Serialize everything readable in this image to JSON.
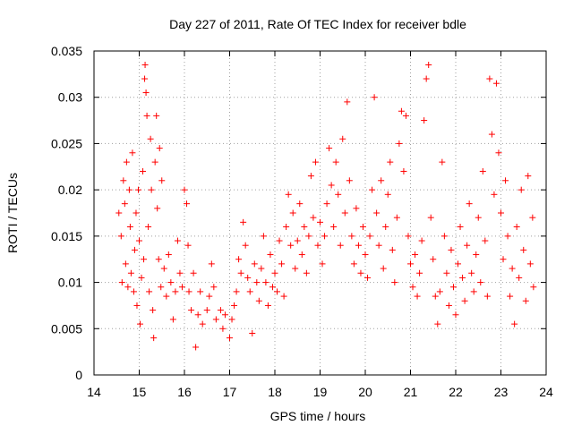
{
  "chart_data": {
    "type": "scatter",
    "title": "Day 227 of 2011, Rate Of TEC Index for receiver bdle",
    "xlabel": "GPS time / hours",
    "ylabel": "ROTI / TECUs",
    "xlim": [
      14,
      24
    ],
    "ylim": [
      0,
      0.035
    ],
    "x_ticks": [
      "14",
      "15",
      "16",
      "17",
      "18",
      "19",
      "20",
      "21",
      "22",
      "23",
      "24"
    ],
    "y_ticks": [
      "0",
      "0.005",
      "0.01",
      "0.015",
      "0.02",
      "0.025",
      "0.03",
      "0.035"
    ],
    "grid": true,
    "marker": "+",
    "color": "#ff0000",
    "series": [
      {
        "name": "ROTI",
        "points": [
          [
            14.55,
            0.0175
          ],
          [
            14.6,
            0.015
          ],
          [
            14.62,
            0.01
          ],
          [
            14.65,
            0.021
          ],
          [
            14.68,
            0.0185
          ],
          [
            14.7,
            0.012
          ],
          [
            14.72,
            0.023
          ],
          [
            14.75,
            0.0095
          ],
          [
            14.78,
            0.02
          ],
          [
            14.8,
            0.016
          ],
          [
            14.82,
            0.011
          ],
          [
            14.85,
            0.024
          ],
          [
            14.88,
            0.009
          ],
          [
            14.9,
            0.0135
          ],
          [
            14.93,
            0.0175
          ],
          [
            14.95,
            0.0075
          ],
          [
            14.98,
            0.02
          ],
          [
            15.0,
            0.0145
          ],
          [
            15.02,
            0.0055
          ],
          [
            15.05,
            0.0105
          ],
          [
            15.08,
            0.022
          ],
          [
            15.1,
            0.0125
          ],
          [
            15.12,
            0.032
          ],
          [
            15.13,
            0.0335
          ],
          [
            15.15,
            0.0305
          ],
          [
            15.17,
            0.028
          ],
          [
            15.2,
            0.016
          ],
          [
            15.22,
            0.009
          ],
          [
            15.25,
            0.0255
          ],
          [
            15.27,
            0.02
          ],
          [
            15.3,
            0.007
          ],
          [
            15.32,
            0.004
          ],
          [
            15.35,
            0.023
          ],
          [
            15.38,
            0.028
          ],
          [
            15.4,
            0.018
          ],
          [
            15.43,
            0.0125
          ],
          [
            15.45,
            0.0245
          ],
          [
            15.48,
            0.0095
          ],
          [
            15.5,
            0.021
          ],
          [
            15.55,
            0.0115
          ],
          [
            15.6,
            0.0085
          ],
          [
            15.65,
            0.013
          ],
          [
            15.7,
            0.01
          ],
          [
            15.75,
            0.006
          ],
          [
            15.8,
            0.009
          ],
          [
            15.85,
            0.0145
          ],
          [
            15.9,
            0.011
          ],
          [
            15.95,
            0.0095
          ],
          [
            16.0,
            0.02
          ],
          [
            16.05,
            0.0185
          ],
          [
            16.08,
            0.014
          ],
          [
            16.1,
            0.009
          ],
          [
            16.15,
            0.007
          ],
          [
            16.2,
            0.011
          ],
          [
            16.25,
            0.003
          ],
          [
            16.3,
            0.0065
          ],
          [
            16.35,
            0.009
          ],
          [
            16.4,
            0.0055
          ],
          [
            16.5,
            0.007
          ],
          [
            16.55,
            0.0085
          ],
          [
            16.6,
            0.012
          ],
          [
            16.65,
            0.0095
          ],
          [
            16.7,
            0.006
          ],
          [
            16.8,
            0.007
          ],
          [
            16.85,
            0.005
          ],
          [
            16.9,
            0.0065
          ],
          [
            17.0,
            0.004
          ],
          [
            17.05,
            0.006
          ],
          [
            17.1,
            0.0075
          ],
          [
            17.15,
            0.009
          ],
          [
            17.2,
            0.0125
          ],
          [
            17.25,
            0.011
          ],
          [
            17.3,
            0.0165
          ],
          [
            17.35,
            0.014
          ],
          [
            17.4,
            0.0105
          ],
          [
            17.45,
            0.009
          ],
          [
            17.5,
            0.0045
          ],
          [
            17.55,
            0.012
          ],
          [
            17.6,
            0.01
          ],
          [
            17.65,
            0.008
          ],
          [
            17.7,
            0.0115
          ],
          [
            17.75,
            0.015
          ],
          [
            17.8,
            0.01
          ],
          [
            17.85,
            0.0075
          ],
          [
            17.9,
            0.013
          ],
          [
            17.95,
            0.0095
          ],
          [
            18.0,
            0.011
          ],
          [
            18.05,
            0.009
          ],
          [
            18.1,
            0.0145
          ],
          [
            18.15,
            0.012
          ],
          [
            18.2,
            0.0085
          ],
          [
            18.25,
            0.016
          ],
          [
            18.3,
            0.0195
          ],
          [
            18.35,
            0.014
          ],
          [
            18.4,
            0.0175
          ],
          [
            18.45,
            0.0115
          ],
          [
            18.5,
            0.0145
          ],
          [
            18.55,
            0.0185
          ],
          [
            18.6,
            0.013
          ],
          [
            18.65,
            0.016
          ],
          [
            18.7,
            0.011
          ],
          [
            18.75,
            0.015
          ],
          [
            18.8,
            0.0215
          ],
          [
            18.85,
            0.017
          ],
          [
            18.9,
            0.023
          ],
          [
            18.95,
            0.014
          ],
          [
            19.0,
            0.0165
          ],
          [
            19.05,
            0.012
          ],
          [
            19.1,
            0.015
          ],
          [
            19.15,
            0.0185
          ],
          [
            19.2,
            0.0245
          ],
          [
            19.25,
            0.0205
          ],
          [
            19.3,
            0.016
          ],
          [
            19.35,
            0.023
          ],
          [
            19.4,
            0.0195
          ],
          [
            19.45,
            0.014
          ],
          [
            19.5,
            0.0255
          ],
          [
            19.55,
            0.0175
          ],
          [
            19.6,
            0.0295
          ],
          [
            19.65,
            0.021
          ],
          [
            19.7,
            0.015
          ],
          [
            19.75,
            0.012
          ],
          [
            19.8,
            0.018
          ],
          [
            19.85,
            0.014
          ],
          [
            19.9,
            0.011
          ],
          [
            19.95,
            0.016
          ],
          [
            20.0,
            0.013
          ],
          [
            20.05,
            0.0105
          ],
          [
            20.1,
            0.015
          ],
          [
            20.15,
            0.02
          ],
          [
            20.2,
            0.03
          ],
          [
            20.25,
            0.0175
          ],
          [
            20.3,
            0.014
          ],
          [
            20.35,
            0.021
          ],
          [
            20.4,
            0.0115
          ],
          [
            20.45,
            0.016
          ],
          [
            20.5,
            0.0195
          ],
          [
            20.55,
            0.023
          ],
          [
            20.6,
            0.0135
          ],
          [
            20.65,
            0.01
          ],
          [
            20.7,
            0.017
          ],
          [
            20.75,
            0.025
          ],
          [
            20.8,
            0.0285
          ],
          [
            20.85,
            0.022
          ],
          [
            20.9,
            0.028
          ],
          [
            20.95,
            0.015
          ],
          [
            21.0,
            0.012
          ],
          [
            21.05,
            0.0095
          ],
          [
            21.1,
            0.013
          ],
          [
            21.15,
            0.0085
          ],
          [
            21.2,
            0.011
          ],
          [
            21.25,
            0.0145
          ],
          [
            21.3,
            0.0275
          ],
          [
            21.35,
            0.032
          ],
          [
            21.4,
            0.0335
          ],
          [
            21.45,
            0.017
          ],
          [
            21.5,
            0.0125
          ],
          [
            21.55,
            0.0085
          ],
          [
            21.6,
            0.0055
          ],
          [
            21.65,
            0.009
          ],
          [
            21.7,
            0.023
          ],
          [
            21.75,
            0.015
          ],
          [
            21.8,
            0.011
          ],
          [
            21.85,
            0.0075
          ],
          [
            21.9,
            0.0135
          ],
          [
            21.95,
            0.0095
          ],
          [
            22.0,
            0.0065
          ],
          [
            22.05,
            0.012
          ],
          [
            22.1,
            0.016
          ],
          [
            22.15,
            0.0105
          ],
          [
            22.2,
            0.008
          ],
          [
            22.25,
            0.014
          ],
          [
            22.3,
            0.0185
          ],
          [
            22.35,
            0.011
          ],
          [
            22.4,
            0.009
          ],
          [
            22.45,
            0.013
          ],
          [
            22.5,
            0.017
          ],
          [
            22.55,
            0.01
          ],
          [
            22.6,
            0.022
          ],
          [
            22.65,
            0.0145
          ],
          [
            22.7,
            0.0085
          ],
          [
            22.75,
            0.032
          ],
          [
            22.8,
            0.026
          ],
          [
            22.85,
            0.0195
          ],
          [
            22.9,
            0.0315
          ],
          [
            22.95,
            0.024
          ],
          [
            23.0,
            0.0175
          ],
          [
            23.05,
            0.0125
          ],
          [
            23.1,
            0.021
          ],
          [
            23.15,
            0.015
          ],
          [
            23.2,
            0.0085
          ],
          [
            23.25,
            0.0115
          ],
          [
            23.3,
            0.0055
          ],
          [
            23.35,
            0.016
          ],
          [
            23.4,
            0.0105
          ],
          [
            23.45,
            0.02
          ],
          [
            23.5,
            0.0135
          ],
          [
            23.55,
            0.008
          ],
          [
            23.6,
            0.0215
          ],
          [
            23.65,
            0.012
          ],
          [
            23.7,
            0.017
          ],
          [
            23.72,
            0.0095
          ]
        ]
      }
    ]
  }
}
